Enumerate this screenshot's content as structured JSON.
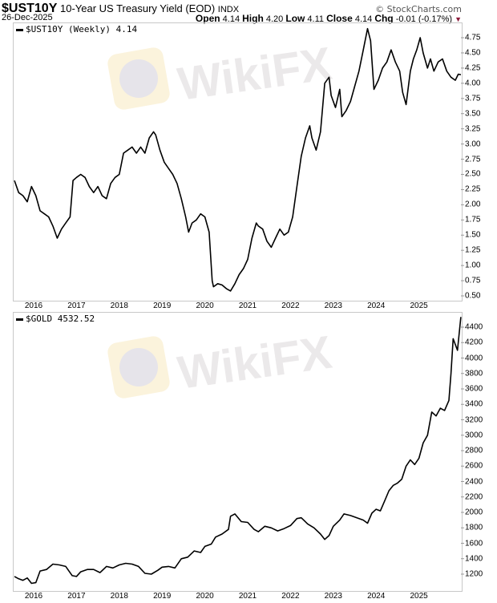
{
  "header": {
    "symbol": "$UST10Y",
    "description": "10-Year US Treasury Yield (EOD)",
    "exchange": "INDX",
    "date": "26-Dec-2025",
    "brand": "© StockCharts.com",
    "open_label": "Open",
    "open": "4.14",
    "high_label": "High",
    "high": "4.20",
    "low_label": "Low",
    "low": "4.11",
    "close_label": "Close",
    "close": "4.14",
    "chg_label": "Chg",
    "chg": "-0.01 (-0.17%)",
    "chg_arrow": "▼",
    "chg_color": "#8b1a3a"
  },
  "watermark": {
    "text": "WikiFX"
  },
  "panels": {
    "top": {
      "legend": "$UST10Y (Weekly) 4.14"
    },
    "bottom": {
      "legend": "$GOLD 4532.52"
    }
  },
  "chart_data": [
    {
      "type": "line",
      "title": "$UST10Y (Weekly) 4.14",
      "xlabel": "",
      "ylabel": "",
      "x_tick_labels": [
        "2016",
        "2017",
        "2018",
        "2019",
        "2020",
        "2021",
        "2022",
        "2023",
        "2024",
        "2025"
      ],
      "y_tick_labels": [
        "4.75",
        "4.50",
        "4.25",
        "4.00",
        "3.75",
        "3.50",
        "3.25",
        "3.00",
        "2.75",
        "2.50",
        "2.25",
        "2.00",
        "1.75",
        "1.50",
        "1.25",
        "1.00",
        "0.75",
        "0.50"
      ],
      "ylim": [
        0.5,
        4.75
      ],
      "grid": false,
      "legend_position": "top-left",
      "x": [
        2015.55,
        2015.65,
        2015.75,
        2015.85,
        2015.95,
        2016.05,
        2016.15,
        2016.25,
        2016.35,
        2016.45,
        2016.55,
        2016.65,
        2016.75,
        2016.85,
        2016.92,
        2017.0,
        2017.1,
        2017.2,
        2017.3,
        2017.4,
        2017.5,
        2017.6,
        2017.7,
        2017.8,
        2017.9,
        2018.0,
        2018.1,
        2018.2,
        2018.3,
        2018.4,
        2018.5,
        2018.6,
        2018.7,
        2018.8,
        2018.85,
        2018.95,
        2019.05,
        2019.15,
        2019.25,
        2019.35,
        2019.45,
        2019.55,
        2019.62,
        2019.7,
        2019.8,
        2019.9,
        2020.0,
        2020.1,
        2020.17,
        2020.2,
        2020.3,
        2020.4,
        2020.5,
        2020.6,
        2020.7,
        2020.8,
        2020.9,
        2021.0,
        2021.1,
        2021.2,
        2021.25,
        2021.35,
        2021.45,
        2021.55,
        2021.65,
        2021.75,
        2021.85,
        2021.95,
        2022.05,
        2022.15,
        2022.25,
        2022.35,
        2022.45,
        2022.5,
        2022.6,
        2022.7,
        2022.8,
        2022.9,
        2022.95,
        2023.05,
        2023.15,
        2023.2,
        2023.3,
        2023.4,
        2023.5,
        2023.6,
        2023.7,
        2023.8,
        2023.87,
        2023.95,
        2024.05,
        2024.15,
        2024.25,
        2024.35,
        2024.45,
        2024.55,
        2024.62,
        2024.7,
        2024.8,
        2024.87,
        2024.95,
        2025.03,
        2025.1,
        2025.2,
        2025.27,
        2025.35,
        2025.45,
        2025.55,
        2025.65,
        2025.75,
        2025.85,
        2025.92,
        2025.98
      ],
      "values": [
        2.4,
        2.2,
        2.15,
        2.05,
        2.3,
        2.15,
        1.9,
        1.85,
        1.8,
        1.65,
        1.45,
        1.6,
        1.7,
        1.8,
        2.4,
        2.45,
        2.5,
        2.45,
        2.3,
        2.2,
        2.3,
        2.15,
        2.1,
        2.35,
        2.45,
        2.5,
        2.85,
        2.9,
        2.95,
        2.85,
        2.95,
        2.85,
        3.1,
        3.2,
        3.15,
        2.9,
        2.7,
        2.6,
        2.5,
        2.35,
        2.1,
        1.8,
        1.55,
        1.7,
        1.75,
        1.85,
        1.8,
        1.55,
        0.75,
        0.65,
        0.7,
        0.68,
        0.62,
        0.58,
        0.7,
        0.85,
        0.95,
        1.1,
        1.45,
        1.7,
        1.65,
        1.6,
        1.4,
        1.3,
        1.45,
        1.6,
        1.5,
        1.55,
        1.8,
        2.3,
        2.8,
        3.1,
        3.3,
        3.1,
        2.9,
        3.2,
        4.0,
        4.1,
        3.8,
        3.6,
        3.9,
        3.45,
        3.55,
        3.7,
        3.95,
        4.2,
        4.55,
        4.9,
        4.7,
        3.9,
        4.05,
        4.25,
        4.35,
        4.55,
        4.35,
        4.2,
        3.85,
        3.65,
        4.2,
        4.4,
        4.55,
        4.75,
        4.5,
        4.25,
        4.4,
        4.2,
        4.35,
        4.4,
        4.2,
        4.1,
        4.05,
        4.15,
        4.14
      ]
    },
    {
      "type": "line",
      "title": "$GOLD 4532.52",
      "xlabel": "",
      "ylabel": "",
      "x_tick_labels": [
        "2016",
        "2017",
        "2018",
        "2019",
        "2020",
        "2021",
        "2022",
        "2023",
        "2024",
        "2025"
      ],
      "y_tick_labels": [
        "4400",
        "4200",
        "4000",
        "3800",
        "3600",
        "3400",
        "3200",
        "3000",
        "2800",
        "2600",
        "2400",
        "2200",
        "2000",
        "1800",
        "1600",
        "1400",
        "1200"
      ],
      "ylim": [
        1100,
        4550
      ],
      "grid": false,
      "legend_position": "top-left",
      "x": [
        2015.55,
        2015.65,
        2015.75,
        2015.85,
        2015.95,
        2016.05,
        2016.15,
        2016.3,
        2016.45,
        2016.6,
        2016.75,
        2016.9,
        2017.0,
        2017.1,
        2017.25,
        2017.4,
        2017.55,
        2017.7,
        2017.85,
        2018.0,
        2018.15,
        2018.3,
        2018.45,
        2018.6,
        2018.75,
        2018.9,
        2019.0,
        2019.15,
        2019.3,
        2019.45,
        2019.6,
        2019.75,
        2019.9,
        2020.0,
        2020.15,
        2020.25,
        2020.4,
        2020.55,
        2020.6,
        2020.7,
        2020.85,
        2021.0,
        2021.15,
        2021.25,
        2021.4,
        2021.55,
        2021.7,
        2021.85,
        2022.0,
        2022.15,
        2022.25,
        2022.4,
        2022.55,
        2022.7,
        2022.8,
        2022.9,
        2023.0,
        2023.15,
        2023.25,
        2023.4,
        2023.55,
        2023.7,
        2023.8,
        2023.9,
        2024.0,
        2024.1,
        2024.2,
        2024.3,
        2024.4,
        2024.5,
        2024.6,
        2024.7,
        2024.8,
        2024.9,
        2025.0,
        2025.1,
        2025.2,
        2025.3,
        2025.4,
        2025.5,
        2025.6,
        2025.7,
        2025.75,
        2025.8,
        2025.9,
        2025.98
      ],
      "values": [
        1170,
        1140,
        1120,
        1150,
        1080,
        1090,
        1240,
        1260,
        1330,
        1320,
        1300,
        1180,
        1170,
        1230,
        1260,
        1260,
        1220,
        1300,
        1280,
        1320,
        1340,
        1330,
        1300,
        1210,
        1200,
        1250,
        1290,
        1300,
        1280,
        1400,
        1420,
        1500,
        1480,
        1560,
        1590,
        1680,
        1720,
        1780,
        1950,
        1980,
        1880,
        1870,
        1780,
        1750,
        1820,
        1800,
        1760,
        1790,
        1830,
        1920,
        1930,
        1850,
        1800,
        1720,
        1650,
        1700,
        1820,
        1900,
        1980,
        1960,
        1930,
        1900,
        1860,
        1990,
        2040,
        2020,
        2150,
        2280,
        2350,
        2380,
        2430,
        2600,
        2680,
        2620,
        2700,
        2900,
        3000,
        3300,
        3250,
        3350,
        3320,
        3450,
        3800,
        4250,
        4100,
        4532
      ]
    }
  ]
}
